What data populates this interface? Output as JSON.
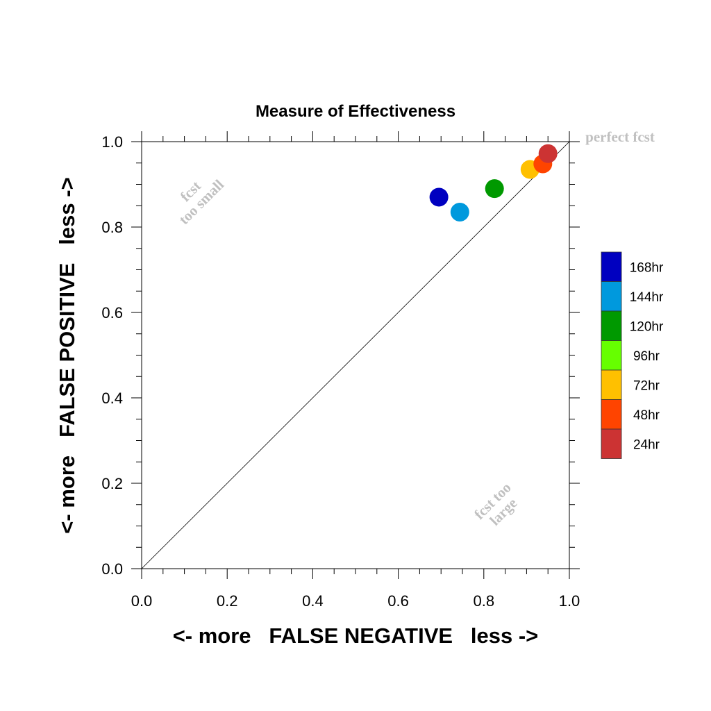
{
  "chart_data": {
    "type": "scatter",
    "title": "Measure of Effectiveness",
    "xlabel": "<- more   FALSE NEGATIVE   less ->",
    "ylabel": "<- more   FALSE POSITIVE   less ->",
    "xlim": [
      0.0,
      1.0
    ],
    "ylim": [
      0.0,
      1.0
    ],
    "xticks": [
      "0.0",
      "0.2",
      "0.4",
      "0.6",
      "0.8",
      "1.0"
    ],
    "yticks": [
      "0.0",
      "0.2",
      "0.4",
      "0.6",
      "0.8",
      "1.0"
    ],
    "grid": false,
    "diagonal_line": true,
    "annotations": {
      "perfect": "perfect fcst",
      "too_small_line1": "fcst",
      "too_small_line2": "too small",
      "too_large_line1": "fcst too",
      "too_large_line2": "large"
    },
    "legend_position": "right",
    "legend": [
      {
        "label": "168hr",
        "color": "#0000c0"
      },
      {
        "label": "144hr",
        "color": "#0099dd"
      },
      {
        "label": "120hr",
        "color": "#009900"
      },
      {
        "label": "96hr",
        "color": "#66ff00"
      },
      {
        "label": "72hr",
        "color": "#ffc000"
      },
      {
        "label": "48hr",
        "color": "#ff4400"
      },
      {
        "label": "24hr",
        "color": "#cc3333"
      }
    ],
    "points": [
      {
        "series": "168hr",
        "x": 0.695,
        "y": 0.87,
        "color": "#0000c0"
      },
      {
        "series": "144hr",
        "x": 0.744,
        "y": 0.835,
        "color": "#0099dd"
      },
      {
        "series": "120hr",
        "x": 0.825,
        "y": 0.89,
        "color": "#009900"
      },
      {
        "series": "72hr",
        "x": 0.908,
        "y": 0.935,
        "color": "#ffc000"
      },
      {
        "series": "48hr",
        "x": 0.938,
        "y": 0.948,
        "color": "#ff4400"
      },
      {
        "series": "24hr",
        "x": 0.95,
        "y": 0.972,
        "color": "#cc3333"
      }
    ]
  }
}
